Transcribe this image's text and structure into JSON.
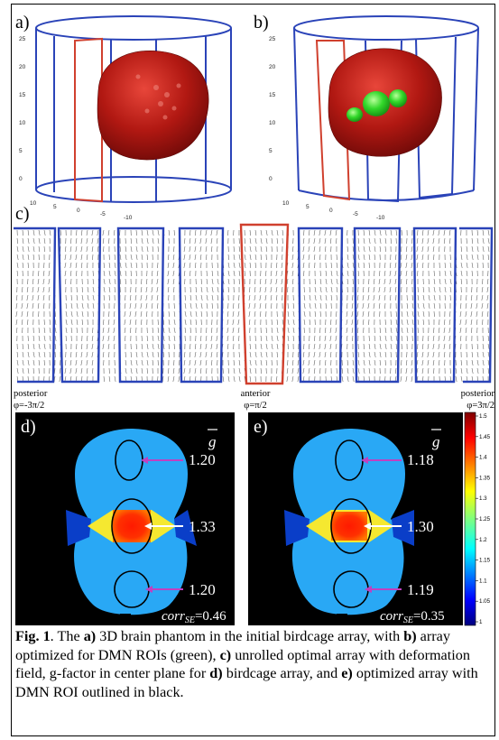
{
  "panels": {
    "a": {
      "label": "a)",
      "x_ticks": [
        "10",
        "5",
        "0",
        "-5",
        "-10"
      ],
      "y_ticks": [
        "25",
        "20",
        "15",
        "10",
        "5",
        "0"
      ]
    },
    "b": {
      "label": "b)",
      "x_ticks": [
        "10",
        "5",
        "0",
        "-5",
        "-10"
      ],
      "y_ticks": [
        "25",
        "20",
        "15",
        "10",
        "5",
        "0"
      ]
    },
    "c": {
      "label": "c)",
      "axis_labels": [
        {
          "name": "posterior",
          "phi": "φ=-3π/2"
        },
        {
          "name": "anterior",
          "phi": "φ=π/2"
        },
        {
          "name": "posterior",
          "phi": "φ=3π/2"
        }
      ]
    },
    "d": {
      "label": "d)",
      "g_symbol": "g",
      "roi_values": [
        "1.20",
        "1.33",
        "1.20"
      ],
      "corr_label": "corr",
      "corr_sub": "SE",
      "corr_value": "=0.46"
    },
    "e": {
      "label": "e)",
      "g_symbol": "g",
      "roi_values": [
        "1.18",
        "1.30",
        "1.19"
      ],
      "corr_label": "corr",
      "corr_sub": "SE",
      "corr_value": "=0.35"
    }
  },
  "colorbar": {
    "ticks": [
      "1.5",
      "1.45",
      "1.4",
      "1.35",
      "1.3",
      "1.25",
      "1.2",
      "1.15",
      "1.1",
      "1.05",
      "1"
    ]
  },
  "colors": {
    "coil_blue": "#2a43b8",
    "coil_red": "#d0402e",
    "brain_red": "#a81410",
    "roi_green": "#2fd82a",
    "arrow_magenta": "#c040c0",
    "map_background": "#000000"
  },
  "caption": {
    "fig": "Fig. 1",
    "t1": ". The ",
    "a": "a)",
    "t2": " 3D brain phantom in the initial birdcage array, with ",
    "b": "b)",
    "t3": " array optimized for DMN ROIs (green), ",
    "c": "c)",
    "t4": " unrolled optimal array with deformation field, g-factor in center plane for ",
    "d": "d)",
    "t5": " birdcage array, and ",
    "e": "e)",
    "t6": " optimized array with DMN ROI outlined in black."
  }
}
